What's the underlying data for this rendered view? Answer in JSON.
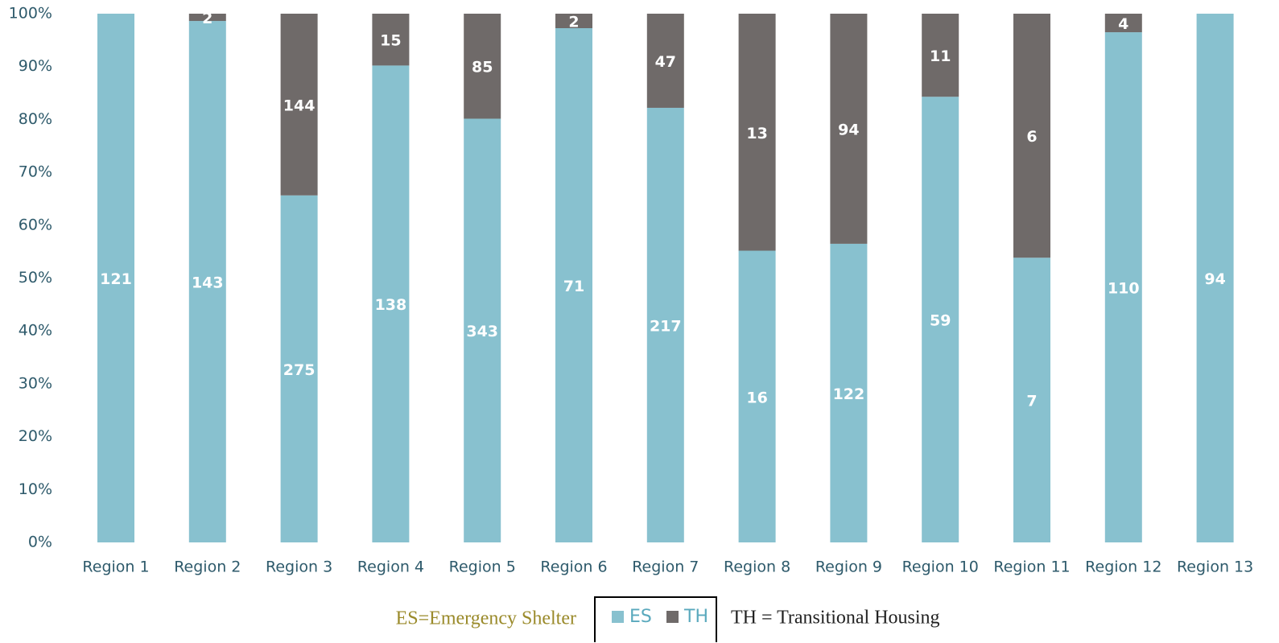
{
  "chart_data": {
    "type": "bar",
    "stacking": "percent",
    "categories": [
      "Region 1",
      "Region 2",
      "Region 3",
      "Region 4",
      "Region 5",
      "Region 6",
      "Region 7",
      "Region 8",
      "Region 9",
      "Region 10",
      "Region 11",
      "Region 12",
      "Region 13"
    ],
    "series": [
      {
        "name": "ES",
        "color": "#88c1cf",
        "values": [
          121,
          143,
          275,
          138,
          343,
          71,
          217,
          16,
          122,
          59,
          7,
          110,
          94
        ]
      },
      {
        "name": "TH",
        "color": "#6f6a69",
        "values": [
          null,
          2,
          144,
          15,
          85,
          2,
          47,
          13,
          94,
          11,
          6,
          4,
          null
        ]
      }
    ],
    "ylim": [
      0,
      100
    ],
    "yticks": [
      {
        "value": 0,
        "label": "0%"
      },
      {
        "value": 10,
        "label": "10%"
      },
      {
        "value": 20,
        "label": "20%"
      },
      {
        "value": 30,
        "label": "30%"
      },
      {
        "value": 40,
        "label": "40%"
      },
      {
        "value": 50,
        "label": "50%"
      },
      {
        "value": 60,
        "label": "60%"
      },
      {
        "value": 70,
        "label": "70%"
      },
      {
        "value": 80,
        "label": "80%"
      },
      {
        "value": 90,
        "label": "90%"
      },
      {
        "value": 100,
        "label": "100%"
      }
    ],
    "annotations": [
      "ES=Emergency Shelter",
      "TH = Transitional Housing"
    ]
  }
}
